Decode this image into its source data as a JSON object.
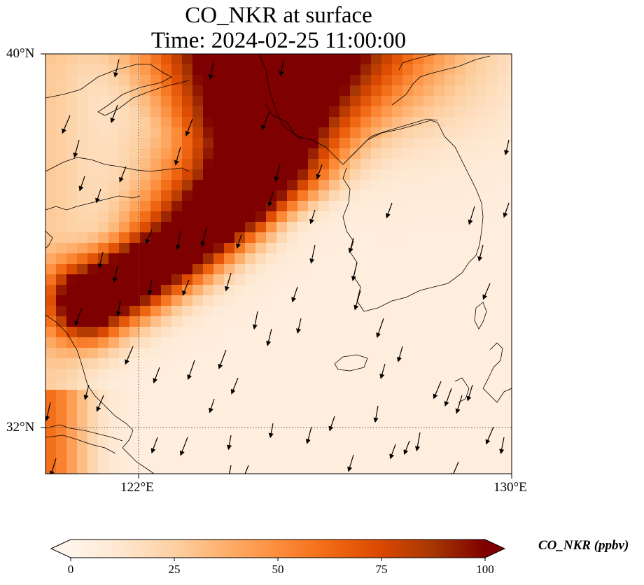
{
  "title": {
    "line1": "CO_NKR at surface",
    "line2": "Time: 2024-02-25 11:00:00"
  },
  "axes": {
    "lat_labels": [
      "40°N",
      "32°N"
    ],
    "lon_labels": [
      "122°E",
      "130°E"
    ],
    "lon_range": [
      120,
      130
    ],
    "lat_range": [
      31,
      40
    ],
    "gridlines": {
      "lon": [
        122
      ],
      "lat": [
        32
      ],
      "style": "dotted"
    }
  },
  "colorbar": {
    "label": "CO_NKR (ppbv)",
    "ticks": [
      "0",
      "25",
      "50",
      "75",
      "100"
    ],
    "range": [
      0,
      100
    ],
    "colormap": [
      "#fff5eb",
      "#fee6ce",
      "#fdd0a2",
      "#fdae6b",
      "#fd8d3c",
      "#f16913",
      "#d94801",
      "#a63603",
      "#7f0000"
    ],
    "extend": "both",
    "placement": "bottom"
  },
  "colors": {
    "plume_max": "#7f0000",
    "coastline": "#000000",
    "wind_arrow": "#000000"
  }
}
